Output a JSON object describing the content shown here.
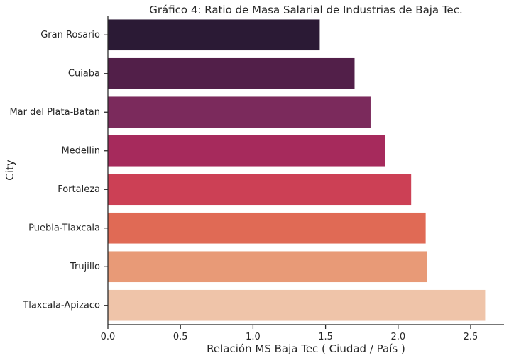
{
  "chart_data": {
    "type": "bar",
    "orientation": "horizontal",
    "title": "Gráfico 4: Ratio de Masa Salarial de Industrias de Baja Tec.",
    "xlabel": "Relación MS Baja Tec ( Ciudad / País )",
    "ylabel": "City",
    "categories": [
      "Gran Rosario",
      "Cuiaba",
      "Mar del Plata-Batan",
      "Medellin",
      "Fortaleza",
      "Puebla-Tlaxcala",
      "Trujillo",
      "Tlaxcala-Apizaco"
    ],
    "values": [
      1.46,
      1.7,
      1.81,
      1.91,
      2.09,
      2.19,
      2.2,
      2.6
    ],
    "xlim": [
      0,
      2.73
    ],
    "xticks": [
      0,
      0.5,
      1,
      1.5,
      2,
      2.5
    ],
    "xtick_labels": [
      "0.0",
      "0.5",
      "1.0",
      "1.5",
      "2.0",
      "2.5"
    ],
    "colors": [
      "#2b1a35",
      "#521f49",
      "#7b2a5c",
      "#a62a5c",
      "#cc4055",
      "#e06a55",
      "#e89a77",
      "#efc4a9"
    ],
    "grid": false,
    "legend": "none"
  }
}
